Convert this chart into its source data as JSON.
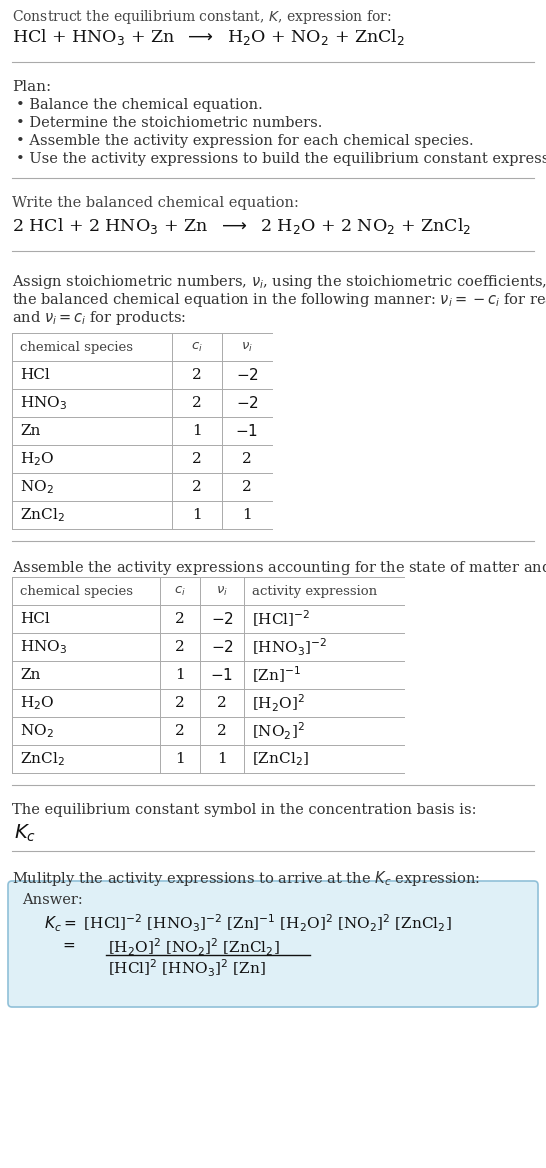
{
  "bg_color": "#ffffff",
  "text_color": "#000000",
  "gray_text": "#444444",
  "title_line1": "Construct the equilibrium constant, $K$, expression for:",
  "title_line2": "HCl + HNO$_3$ + Zn  $\\longrightarrow$  H$_2$O + NO$_2$ + ZnCl$_2$",
  "plan_header": "Plan:",
  "plan_items": [
    "Balance the chemical equation.",
    "Determine the stoichiometric numbers.",
    "Assemble the activity expression for each chemical species.",
    "Use the activity expressions to build the equilibrium constant expression."
  ],
  "balanced_header": "Write the balanced chemical equation:",
  "balanced_eq": "2 HCl + 2 HNO$_3$ + Zn  $\\longrightarrow$  2 H$_2$O + 2 NO$_2$ + ZnCl$_2$",
  "stoich_para_lines": [
    "Assign stoichiometric numbers, $\\nu_i$, using the stoichiometric coefficients, $c_i$, from",
    "the balanced chemical equation in the following manner: $\\nu_i = -c_i$ for reactants",
    "and $\\nu_i = c_i$ for products:"
  ],
  "table1_cols": [
    "chemical species",
    "$c_i$",
    "$\\nu_i$"
  ],
  "table1_rows": [
    [
      "HCl",
      "2",
      "$-2$"
    ],
    [
      "HNO$_3$",
      "2",
      "$-2$"
    ],
    [
      "Zn",
      "1",
      "$-1$"
    ],
    [
      "H$_2$O",
      "2",
      "2"
    ],
    [
      "NO$_2$",
      "2",
      "2"
    ],
    [
      "ZnCl$_2$",
      "1",
      "1"
    ]
  ],
  "activity_header": "Assemble the activity expressions accounting for the state of matter and $\\nu_i$:",
  "table2_cols": [
    "chemical species",
    "$c_i$",
    "$\\nu_i$",
    "activity expression"
  ],
  "table2_rows": [
    [
      "HCl",
      "2",
      "$-2$",
      "[HCl]$^{-2}$"
    ],
    [
      "HNO$_3$",
      "2",
      "$-2$",
      "[HNO$_3$]$^{-2}$"
    ],
    [
      "Zn",
      "1",
      "$-1$",
      "[Zn]$^{-1}$"
    ],
    [
      "H$_2$O",
      "2",
      "2",
      "[H$_2$O]$^2$"
    ],
    [
      "NO$_2$",
      "2",
      "2",
      "[NO$_2$]$^2$"
    ],
    [
      "ZnCl$_2$",
      "1",
      "1",
      "[ZnCl$_2$]"
    ]
  ],
  "kc_header": "The equilibrium constant symbol in the concentration basis is:",
  "kc_symbol": "$K_c$",
  "multiply_header": "Mulitply the activity expressions to arrive at the $K_c$ expression:",
  "answer_box_color": "#dff0f7",
  "answer_box_border": "#90c0d8",
  "answer_label": "Answer:",
  "answer_line1": "$K_c = $ [HCl]$^{-2}$ [HNO$_3$]$^{-2}$ [Zn]$^{-1}$ [H$_2$O]$^2$ [NO$_2$]$^2$ [ZnCl$_2$]",
  "answer_frac_num": "[H$_2$O]$^2$ [NO$_2$]$^2$ [ZnCl$_2$]",
  "answer_frac_den": "[HCl]$^2$ [HNO$_3$]$^2$ [Zn]",
  "fig_width": 5.46,
  "fig_height": 11.68,
  "dpi": 100
}
